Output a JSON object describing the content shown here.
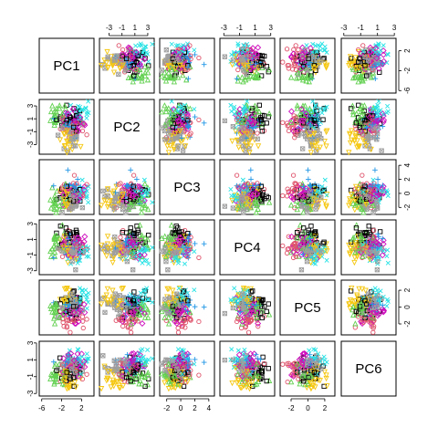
{
  "chart_data": {
    "type": "scatter",
    "variables": [
      "PC1",
      "PC2",
      "PC3",
      "PC4",
      "PC5",
      "PC6"
    ],
    "axis_ranges": {
      "PC1": [
        -6.5,
        4.5
      ],
      "PC2": [
        -4.5,
        4.0
      ],
      "PC3": [
        -3.0,
        4.8
      ],
      "PC4": [
        -3.5,
        3.5
      ],
      "PC5": [
        -3.3,
        3.2
      ],
      "PC6": [
        -3.3,
        3.2
      ]
    },
    "tick_labels": {
      "PC1": [
        "-6",
        "-2",
        "2"
      ],
      "PC2": [
        "-3",
        "-1",
        "1",
        "3"
      ],
      "PC3": [
        "-2",
        "0",
        "2",
        "4"
      ],
      "PC4": [
        "-3",
        "-1",
        "1",
        "3"
      ],
      "PC5": [
        "-2",
        "0",
        "2"
      ],
      "PC6": [
        "-3",
        "-1",
        "1",
        "3"
      ]
    },
    "grid": false,
    "legend": "none",
    "palette": [
      "#000000",
      "#DF536B",
      "#61D04F",
      "#2297E6",
      "#28E2E5",
      "#CD0BBC",
      "#F5C710",
      "#9E9E9E"
    ],
    "n_points": 200,
    "groups": 8
  }
}
